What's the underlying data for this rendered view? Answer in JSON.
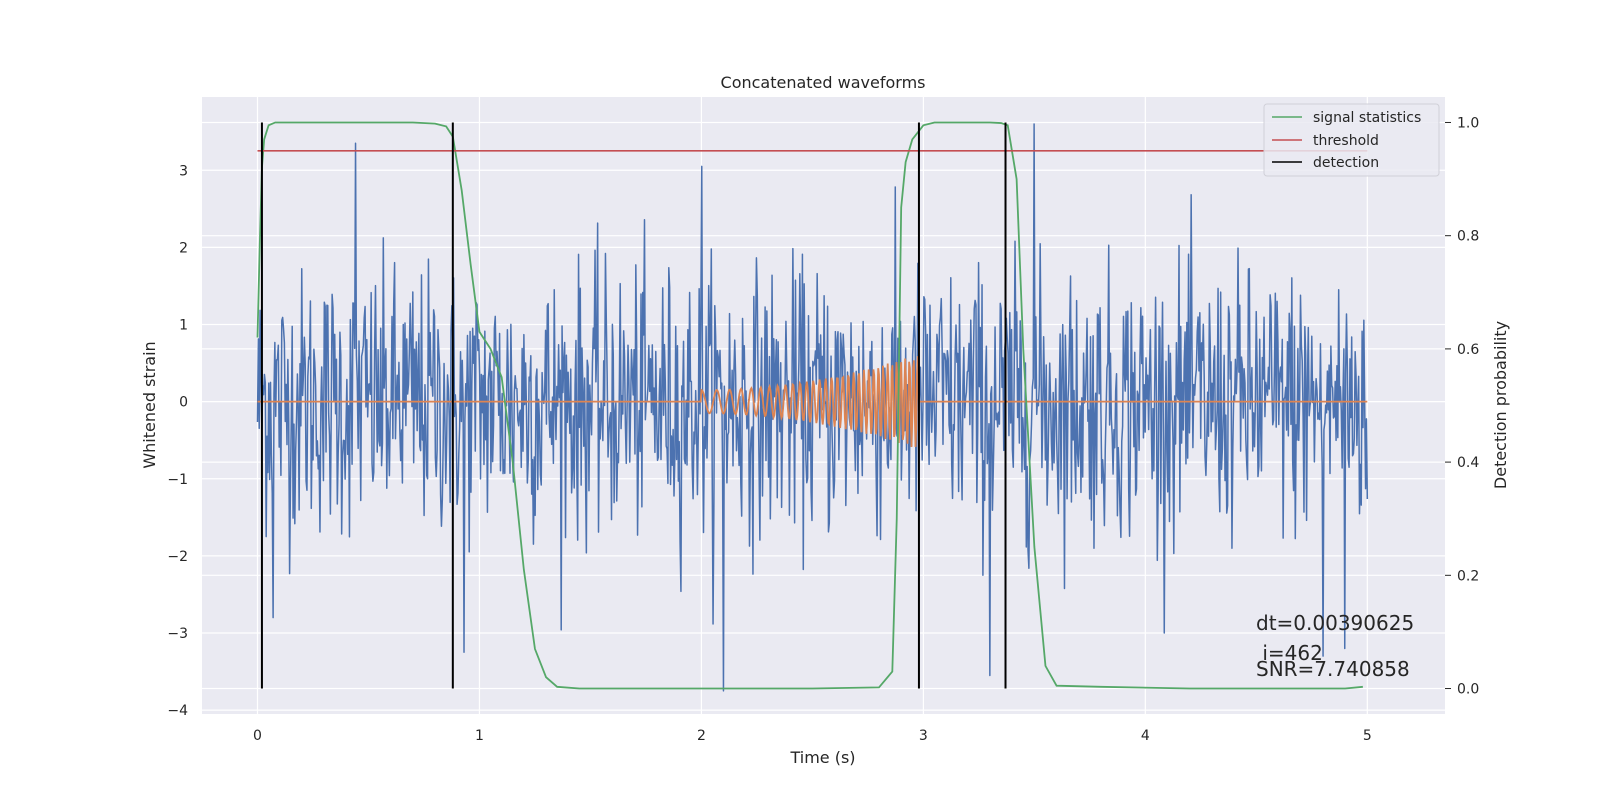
{
  "chart_data": {
    "type": "line",
    "title": "Concatenated waveforms",
    "xlabel": "Time (s)",
    "ylabel": "Whitened strain",
    "y2label": "Detection probability",
    "xlim": [
      -0.25,
      5.35
    ],
    "ylim": [
      -4.05,
      3.95
    ],
    "y2lim": [
      -0.045,
      1.045
    ],
    "x_ticks": [
      0,
      1,
      2,
      3,
      4,
      5
    ],
    "y_ticks": [
      -4,
      -3,
      -2,
      -1,
      0,
      1,
      2,
      3
    ],
    "y2_ticks": [
      0.0,
      0.2,
      0.4,
      0.6,
      0.8,
      1.0
    ],
    "x_tick_labels": [
      "0",
      "1",
      "2",
      "3",
      "4",
      "5"
    ],
    "y_tick_labels": [
      "−4",
      "−3",
      "−2",
      "−1",
      "0",
      "1",
      "2",
      "3"
    ],
    "y2_tick_labels": [
      "0.0",
      "0.2",
      "0.4",
      "0.6",
      "0.8",
      "1.0"
    ],
    "grid": true,
    "legend_position": "top-right",
    "background": "#eaeaf2",
    "series": [
      {
        "name": "",
        "kind": "noise",
        "axis": "left",
        "color": "#4c72b0",
        "x_range": [
          0,
          5
        ],
        "std": 0.85,
        "peaks": [
          [
            0.44,
            3.35
          ],
          [
            2.0,
            3.05
          ],
          [
            3.5,
            3.6
          ],
          [
            2.1,
            -3.75
          ],
          [
            0.93,
            -3.25
          ],
          [
            3.3,
            -3.55
          ],
          [
            4.8,
            -3.3
          ],
          [
            4.9,
            -3.2
          ],
          [
            0.07,
            -2.8
          ]
        ]
      },
      {
        "name": "",
        "kind": "chirp",
        "axis": "left",
        "color": "#dd8452",
        "x_range": [
          0,
          5
        ],
        "chirp_start": 2.0,
        "chirp_end": 2.98,
        "amp_start": 0.15,
        "amp_end": 0.62,
        "freq_start": 13,
        "freq_end": 55
      },
      {
        "name": "signal statistics",
        "axis": "right",
        "color": "#55a868",
        "x": [
          0.0,
          0.01,
          0.02,
          0.03,
          0.05,
          0.08,
          0.15,
          0.3,
          0.5,
          0.7,
          0.8,
          0.85,
          0.88,
          0.92,
          0.96,
          1.0,
          1.05,
          1.1,
          1.15,
          1.2,
          1.25,
          1.3,
          1.35,
          1.45,
          1.7,
          2.0,
          2.5,
          2.8,
          2.86,
          2.88,
          2.9,
          2.92,
          2.95,
          3.0,
          3.05,
          3.15,
          3.3,
          3.35,
          3.38,
          3.42,
          3.45,
          3.5,
          3.55,
          3.6,
          3.8,
          4.2,
          4.6,
          4.9,
          4.98
        ],
        "y": [
          0.62,
          0.78,
          0.92,
          0.97,
          0.995,
          1.0,
          1.0,
          1.0,
          1.0,
          1.0,
          0.998,
          0.993,
          0.975,
          0.88,
          0.75,
          0.63,
          0.6,
          0.55,
          0.4,
          0.21,
          0.07,
          0.02,
          0.003,
          0.0,
          0.0,
          0.0,
          0.0,
          0.002,
          0.03,
          0.3,
          0.85,
          0.93,
          0.97,
          0.995,
          1.0,
          1.0,
          1.0,
          0.999,
          0.995,
          0.9,
          0.6,
          0.25,
          0.04,
          0.005,
          0.003,
          0.0,
          0.0,
          0.0,
          0.003
        ]
      },
      {
        "name": "threshold",
        "axis": "right",
        "color": "#c44e52",
        "x": [
          0,
          5
        ],
        "y": [
          0.95,
          0.95
        ]
      }
    ],
    "detections": {
      "name": "detection",
      "color": "#000000",
      "x": [
        0.02,
        0.88,
        2.98,
        3.37
      ],
      "y_range": [
        0.0,
        1.0
      ]
    },
    "annotations": {
      "dt": "dt=0.00390625",
      "i": " i=462",
      "snr": "SNR=7.740858"
    }
  }
}
